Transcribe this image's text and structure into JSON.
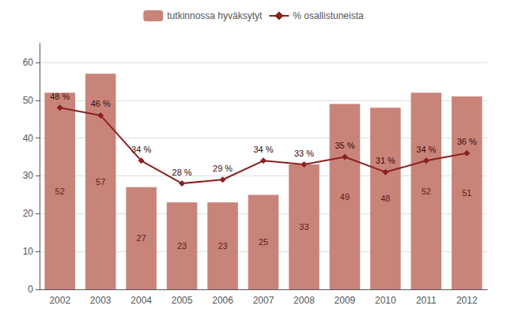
{
  "chart_data": {
    "type": "bar",
    "categories": [
      "2002",
      "2003",
      "2004",
      "2005",
      "2006",
      "2007",
      "2008",
      "2009",
      "2010",
      "2011",
      "2012"
    ],
    "series": [
      {
        "name": "tutkinnossa hyväksytyt",
        "type": "bar",
        "color": "#c9847a",
        "values": [
          52,
          57,
          27,
          23,
          23,
          25,
          33,
          49,
          48,
          52,
          51
        ]
      },
      {
        "name": "% osallistuneista",
        "type": "line",
        "color": "#8b2020",
        "marker": "diamond",
        "values": [
          48,
          46,
          34,
          28,
          29,
          34,
          33,
          35,
          31,
          34,
          36
        ],
        "value_labels": [
          "48 %",
          "46 %",
          "34 %",
          "28 %",
          "29 %",
          "34 %",
          "33 %",
          "35 %",
          "31 %",
          "34 %",
          "36 %"
        ]
      }
    ],
    "ylim": [
      0,
      65
    ],
    "yticks": [
      0,
      10,
      20,
      30,
      40,
      50,
      60
    ],
    "grid": true,
    "data_labels": true,
    "legend": "top"
  }
}
